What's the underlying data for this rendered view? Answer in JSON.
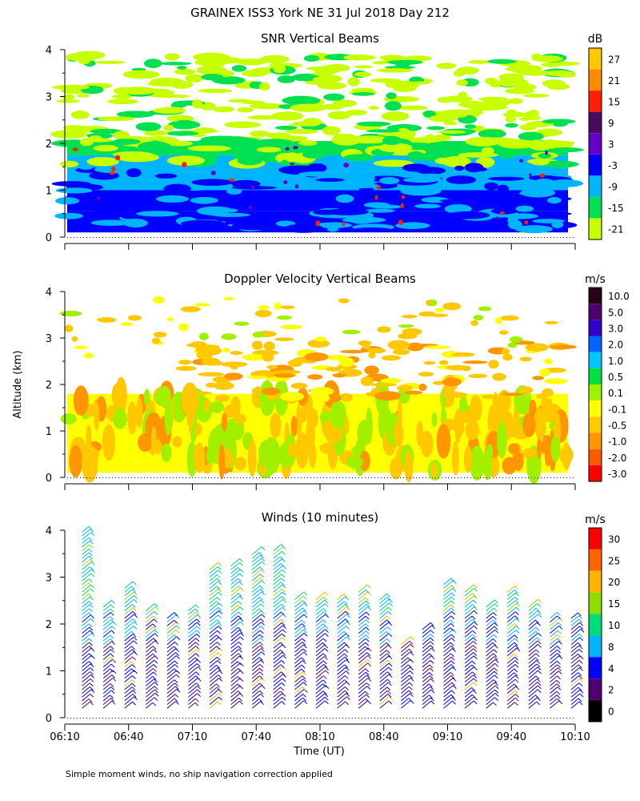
{
  "title": "GRAINEX ISS3 York NE  31 Jul 2018 Day 212",
  "footnote": "Simple moment winds, no ship navigation correction applied",
  "shared_axes": {
    "ylabel": "Altitude (km)",
    "xlabel": "Time (UT)",
    "y_ticks": [
      "0",
      "1",
      "2",
      "3",
      "4"
    ],
    "x_ticks": [
      "06:10",
      "06:40",
      "07:10",
      "07:40",
      "08:10",
      "08:40",
      "09:10",
      "09:40",
      "10:10"
    ]
  },
  "panels": {
    "snr": {
      "title": "SNR Vertical Beams",
      "unit": "dB",
      "levels": [
        "27",
        "21",
        "15",
        "9",
        "3",
        "-3",
        "-9",
        "-15",
        "-21"
      ],
      "colors": [
        "#ffc800",
        "#ff8c00",
        "#ff2000",
        "#4a0a60",
        "#6400c8",
        "#0000ff",
        "#00b4ff",
        "#00e050",
        "#c8ff00"
      ]
    },
    "doppler": {
      "title": "Doppler Velocity Vertical Beams",
      "unit": "m/s",
      "levels": [
        "10.0",
        "5.0",
        "3.0",
        "2.0",
        "1.0",
        "0.5",
        "0.1",
        "-0.1",
        "-0.5",
        "-1.0",
        "-2.0",
        "-3.0"
      ],
      "colors": [
        "#280018",
        "#50006e",
        "#3200c8",
        "#0064ff",
        "#00c8ff",
        "#00e040",
        "#a0f000",
        "#ffff00",
        "#ffc800",
        "#ff9600",
        "#ff5a00",
        "#ff0000"
      ]
    },
    "winds": {
      "title": "Winds (10 minutes)",
      "unit": "m/s",
      "levels": [
        "30",
        "25",
        "20",
        "15",
        "10",
        "8",
        "4",
        "2",
        "0"
      ],
      "colors": [
        "#ff0000",
        "#ff6400",
        "#ffb400",
        "#8cdc00",
        "#00dc78",
        "#00b4ff",
        "#0000ff",
        "#50006e",
        "#000000"
      ]
    }
  },
  "chart_data": [
    {
      "type": "heatmap",
      "title": "SNR Vertical Beams",
      "colorbar_label": "dB",
      "colorbar_levels": [
        27,
        21,
        15,
        9,
        3,
        -3,
        -9,
        -15,
        -21
      ],
      "xlabel": "Time (UT)",
      "ylabel": "Altitude (km)",
      "x_range": [
        "06:10",
        "10:10"
      ],
      "ylim": [
        0,
        4
      ],
      "layers": [
        {
          "altitude_km": [
            0.1,
            0.55
          ],
          "snr_db": -3
        },
        {
          "altitude_km": [
            0.55,
            1.0
          ],
          "snr_db": -6
        },
        {
          "altitude_km": [
            1.0,
            1.4
          ],
          "snr_db": -6
        },
        {
          "altitude_km": [
            1.4,
            1.75
          ],
          "snr_db": -9
        },
        {
          "altitude_km": [
            1.75,
            2.05
          ],
          "snr_db": -15
        },
        {
          "altitude_km": [
            2.05,
            3.9
          ],
          "snr_db": -21
        }
      ]
    },
    {
      "type": "heatmap",
      "title": "Doppler Velocity Vertical Beams",
      "colorbar_label": "m/s",
      "colorbar_levels": [
        10.0,
        5.0,
        3.0,
        2.0,
        1.0,
        0.5,
        0.1,
        -0.1,
        -0.5,
        -1.0,
        -2.0,
        -3.0
      ],
      "xlabel": "Time (UT)",
      "ylabel": "Altitude (km)",
      "x_range": [
        "06:10",
        "10:10"
      ],
      "ylim": [
        0,
        4
      ],
      "layers": [
        {
          "altitude_km": [
            0.1,
            1.8
          ],
          "velocity_ms": -0.1
        },
        {
          "altitude_km": [
            1.8,
            2.6
          ],
          "velocity_ms": -0.5
        },
        {
          "altitude_km": [
            2.6,
            3.9
          ],
          "velocity_ms": -0.5
        }
      ]
    },
    {
      "type": "scatter",
      "title": "Winds (10 minutes)",
      "colorbar_label": "m/s",
      "colorbar_levels": [
        30,
        25,
        20,
        15,
        10,
        8,
        4,
        2,
        0
      ],
      "xlabel": "Time (UT)",
      "ylabel": "Altitude (km)",
      "x_range": [
        "06:10",
        "10:10"
      ],
      "ylim": [
        0,
        4
      ],
      "profile_interval_minutes": 10,
      "profiles": [
        {
          "time": "06:20",
          "top_km": 4.0
        },
        {
          "time": "06:30",
          "top_km": 2.4
        },
        {
          "time": "06:40",
          "top_km": 2.8
        },
        {
          "time": "06:50",
          "top_km": 2.3
        },
        {
          "time": "07:00",
          "top_km": 2.2
        },
        {
          "time": "07:10",
          "top_km": 2.3
        },
        {
          "time": "07:20",
          "top_km": 3.2
        },
        {
          "time": "07:30",
          "top_km": 3.3
        },
        {
          "time": "07:40",
          "top_km": 3.5
        },
        {
          "time": "07:50",
          "top_km": 3.6
        },
        {
          "time": "08:00",
          "top_km": 2.6
        },
        {
          "time": "08:10",
          "top_km": 2.6
        },
        {
          "time": "08:20",
          "top_km": 2.6
        },
        {
          "time": "08:30",
          "top_km": 2.7
        },
        {
          "time": "08:40",
          "top_km": 2.6
        },
        {
          "time": "08:50",
          "top_km": 1.6
        },
        {
          "time": "09:00",
          "top_km": 1.9
        },
        {
          "time": "09:10",
          "top_km": 2.9
        },
        {
          "time": "09:20",
          "top_km": 2.7
        },
        {
          "time": "09:30",
          "top_km": 2.4
        },
        {
          "time": "09:40",
          "top_km": 2.7
        },
        {
          "time": "09:50",
          "top_km": 2.4
        },
        {
          "time": "10:00",
          "top_km": 2.2
        },
        {
          "time": "10:10",
          "top_km": 2.2
        }
      ]
    }
  ]
}
